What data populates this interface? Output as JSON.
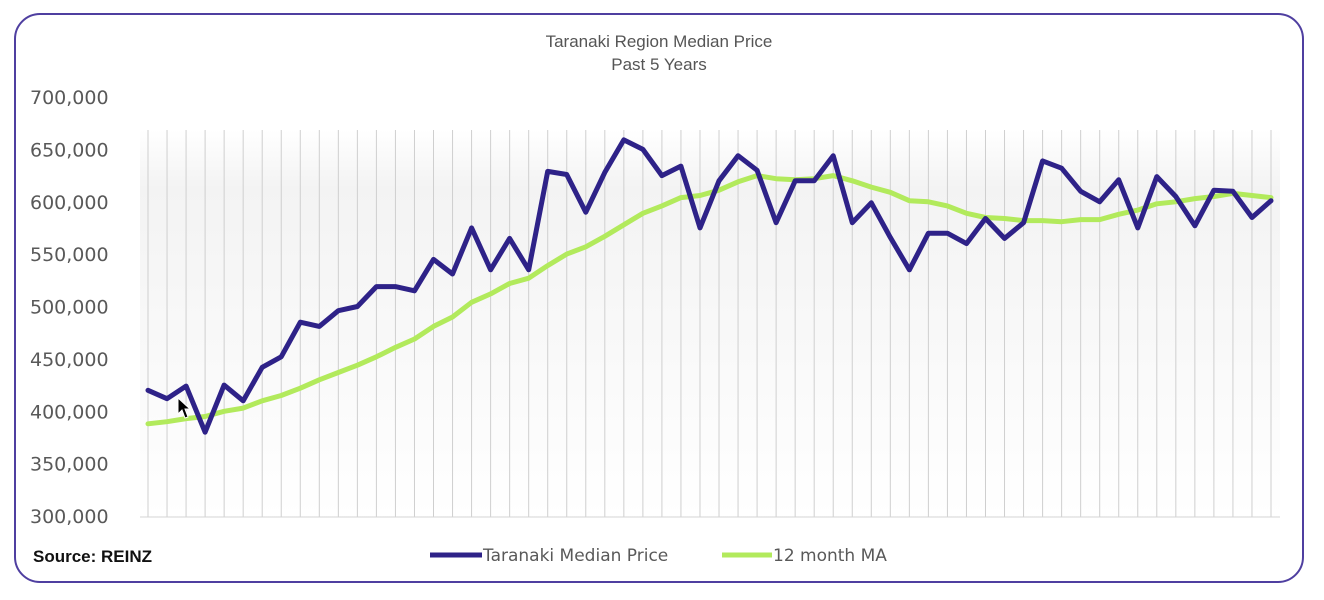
{
  "source_label": "Source: REINZ",
  "chart_data": {
    "type": "line",
    "title": "Taranaki Region Median Price",
    "subtitle": "Past 5 Years",
    "xlabel": "",
    "ylabel": "",
    "ylim": [
      300000,
      700000
    ],
    "yticks": [
      300000,
      350000,
      400000,
      450000,
      500000,
      550000,
      600000,
      650000,
      700000
    ],
    "ytick_labels": [
      "300,000",
      "350,000",
      "400,000",
      "450,000",
      "500,000",
      "550,000",
      "600,000",
      "650,000",
      "700,000"
    ],
    "grid": "vertical",
    "legend": "bottom-center",
    "series": [
      {
        "name": "Taranaki Median Price",
        "color": "#2e2288",
        "values": [
          420000,
          412000,
          424000,
          380000,
          425000,
          410000,
          442000,
          452000,
          485000,
          481000,
          496000,
          500000,
          519000,
          519000,
          515000,
          545000,
          531000,
          575000,
          535000,
          565000,
          535000,
          629000,
          626000,
          590000,
          628000,
          659000,
          650000,
          625000,
          634000,
          575000,
          620000,
          644000,
          630000,
          580000,
          620000,
          620000,
          644000,
          580000,
          599000,
          566000,
          535000,
          570000,
          570000,
          560000,
          584000,
          565000,
          580000,
          639000,
          632000,
          610000,
          600000,
          621000,
          575000,
          624000,
          605000,
          577000,
          611000,
          610000,
          585000,
          601000
        ]
      },
      {
        "name": "12 month MA",
        "color": "#b2ea5c",
        "values": [
          388000,
          390000,
          393000,
          395000,
          400000,
          403000,
          410000,
          415000,
          422000,
          430000,
          437000,
          444000,
          452000,
          461000,
          469000,
          481000,
          490000,
          504000,
          512000,
          522000,
          527000,
          539000,
          550000,
          557000,
          567000,
          578000,
          589000,
          596000,
          604000,
          606000,
          611000,
          619000,
          625000,
          622000,
          621000,
          622000,
          625000,
          620000,
          614000,
          609000,
          601000,
          600000,
          596000,
          589000,
          585000,
          584000,
          582000,
          582000,
          581000,
          583000,
          583000,
          588000,
          592000,
          598000,
          600000,
          603000,
          605000,
          608000,
          606000,
          604000
        ]
      }
    ]
  }
}
